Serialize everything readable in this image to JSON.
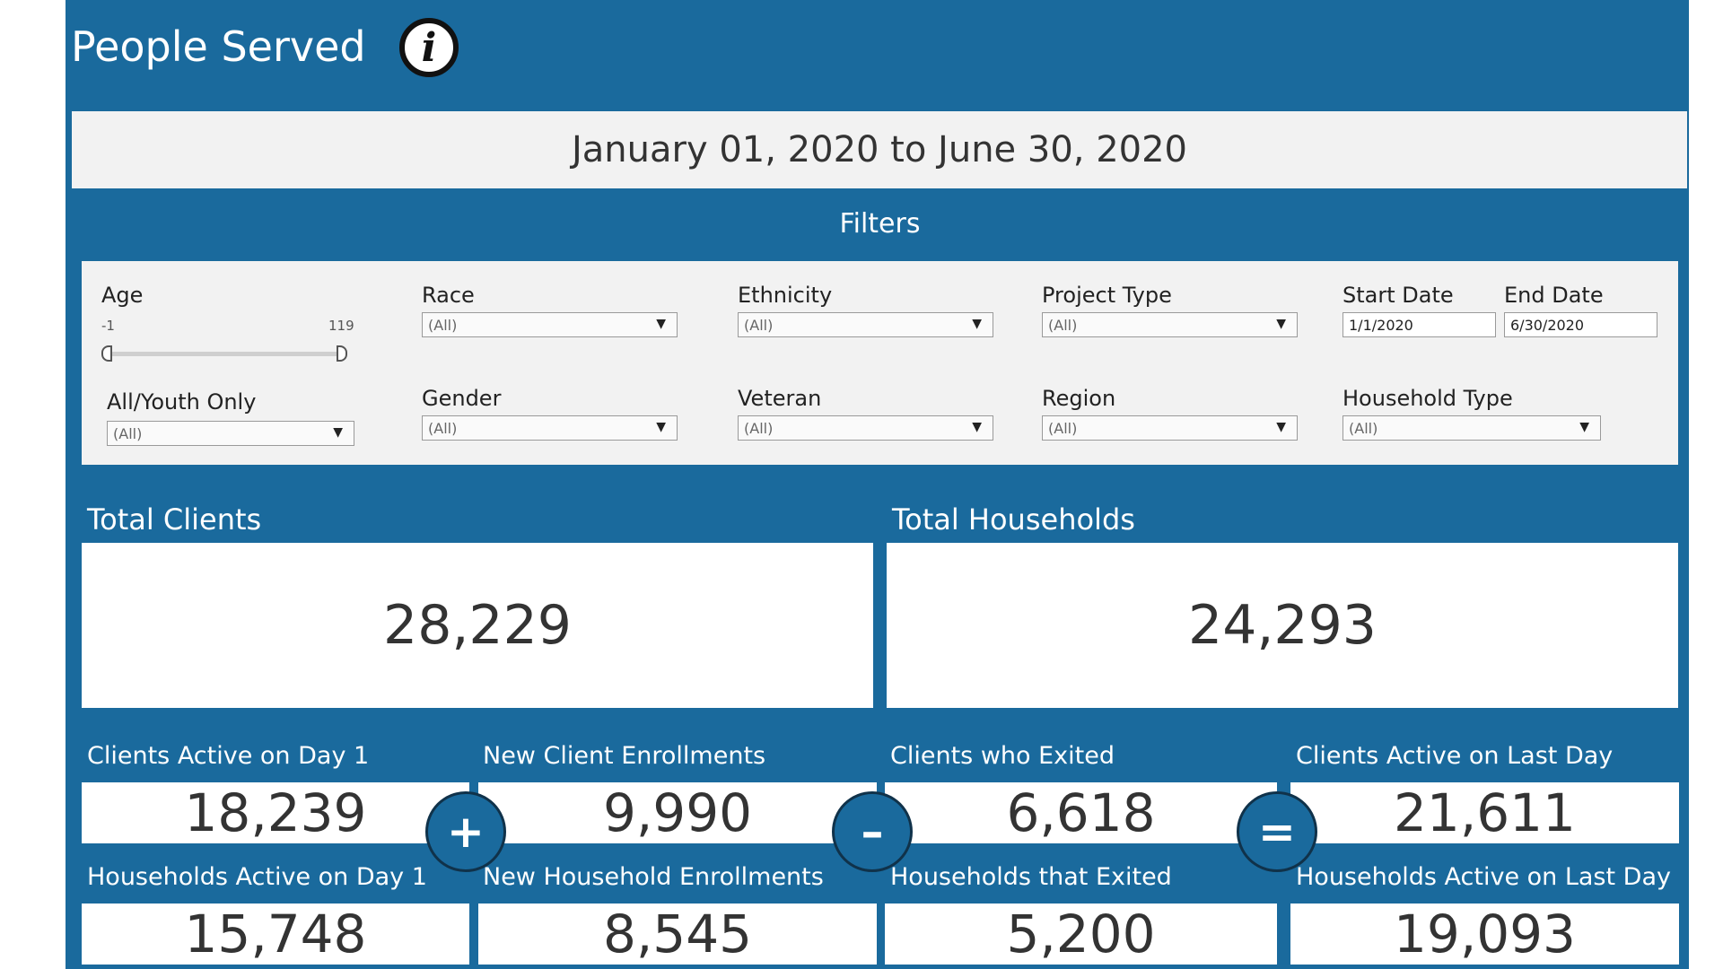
{
  "header": {
    "title": "People Served",
    "info_icon": "info-icon"
  },
  "date_range": "January 01, 2020 to June 30, 2020",
  "filters": {
    "title": "Filters",
    "age": {
      "label": "Age",
      "min": "-1",
      "max": "119"
    },
    "race": {
      "label": "Race",
      "value": "(All)"
    },
    "ethnicity": {
      "label": "Ethnicity",
      "value": "(All)"
    },
    "project_type": {
      "label": "Project Type",
      "value": "(All)"
    },
    "start_date": {
      "label": "Start Date",
      "value": "1/1/2020"
    },
    "end_date": {
      "label": "End Date",
      "value": "6/30/2020"
    },
    "youth": {
      "label": "All/Youth Only",
      "value": "(All)"
    },
    "gender": {
      "label": "Gender",
      "value": "(All)"
    },
    "veteran": {
      "label": "Veteran",
      "value": "(All)"
    },
    "region": {
      "label": "Region",
      "value": "(All)"
    },
    "household_type": {
      "label": "Household Type",
      "value": "(All)"
    }
  },
  "totals": {
    "clients_label": "Total Clients",
    "clients_value": "28,229",
    "households_label": "Total Households",
    "households_value": "24,293"
  },
  "flow": {
    "clients_day1_label": "Clients Active on Day 1",
    "clients_day1": "18,239",
    "new_client_enroll_label": "New Client Enrollments",
    "new_client_enroll": "9,990",
    "clients_exited_label": "Clients who Exited",
    "clients_exited": "6,618",
    "clients_last_label": "Clients Active on Last Day",
    "clients_last": "21,611",
    "hh_day1_label": "Households Active on Day 1",
    "hh_day1": "15,748",
    "new_hh_enroll_label": "New Household Enrollments",
    "new_hh_enroll": "8,545",
    "hh_exited_label": "Households that Exited",
    "hh_exited": "5,200",
    "hh_last_label": "Households Active on Last Day",
    "hh_last": "19,093",
    "op_plus": "+",
    "op_minus": "–",
    "op_equals": "="
  },
  "colors": {
    "brand_blue": "#1a6a9d",
    "panel_gray": "#f2f2f2"
  }
}
